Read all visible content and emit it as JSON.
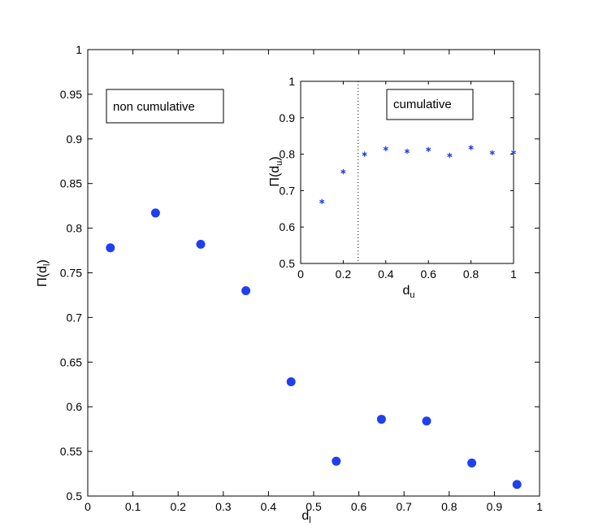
{
  "chart_data": [
    {
      "id": "main",
      "type": "scatter",
      "xlabel": "d",
      "xlabel_sub": "l",
      "ylabel": "Π(d",
      "ylabel_sub": "l",
      "ylabel_close": ")",
      "xlim": [
        0,
        1
      ],
      "ylim": [
        0.5,
        1
      ],
      "xticks": [
        "0",
        "0.1",
        "0.2",
        "0.3",
        "0.4",
        "0.5",
        "0.6",
        "0.7",
        "0.8",
        "0.9",
        "1"
      ],
      "yticks": [
        "0.5",
        "0.55",
        "0.6",
        "0.65",
        "0.7",
        "0.75",
        "0.8",
        "0.85",
        "0.9",
        "0.95",
        "1"
      ],
      "annotation": "non cumulative",
      "marker": "dot",
      "color": "#1f3ff0",
      "x": [
        0.05,
        0.15,
        0.25,
        0.35,
        0.45,
        0.55,
        0.65,
        0.75,
        0.85,
        0.95
      ],
      "y": [
        0.778,
        0.817,
        0.782,
        0.73,
        0.628,
        0.539,
        0.586,
        0.584,
        0.537,
        0.513
      ]
    },
    {
      "id": "inset",
      "type": "scatter",
      "xlabel": "d",
      "xlabel_sub": "u",
      "ylabel": "Π(d",
      "ylabel_sub": "u",
      "ylabel_close": ")",
      "xlim": [
        0,
        1
      ],
      "ylim": [
        0.5,
        1
      ],
      "xticks": [
        "0",
        "0.2",
        "0.4",
        "0.6",
        "0.8",
        "1"
      ],
      "yticks": [
        "0.5",
        "0.6",
        "0.7",
        "0.8",
        "0.9",
        "1"
      ],
      "annotation": "cumulative",
      "marker": "asterisk",
      "color": "#1f3ff0",
      "vline_x": 0.27,
      "x": [
        0.1,
        0.2,
        0.3,
        0.4,
        0.5,
        0.6,
        0.7,
        0.8,
        0.9,
        1.0
      ],
      "y": [
        0.67,
        0.752,
        0.8,
        0.815,
        0.808,
        0.813,
        0.797,
        0.818,
        0.804,
        0.805
      ]
    }
  ]
}
